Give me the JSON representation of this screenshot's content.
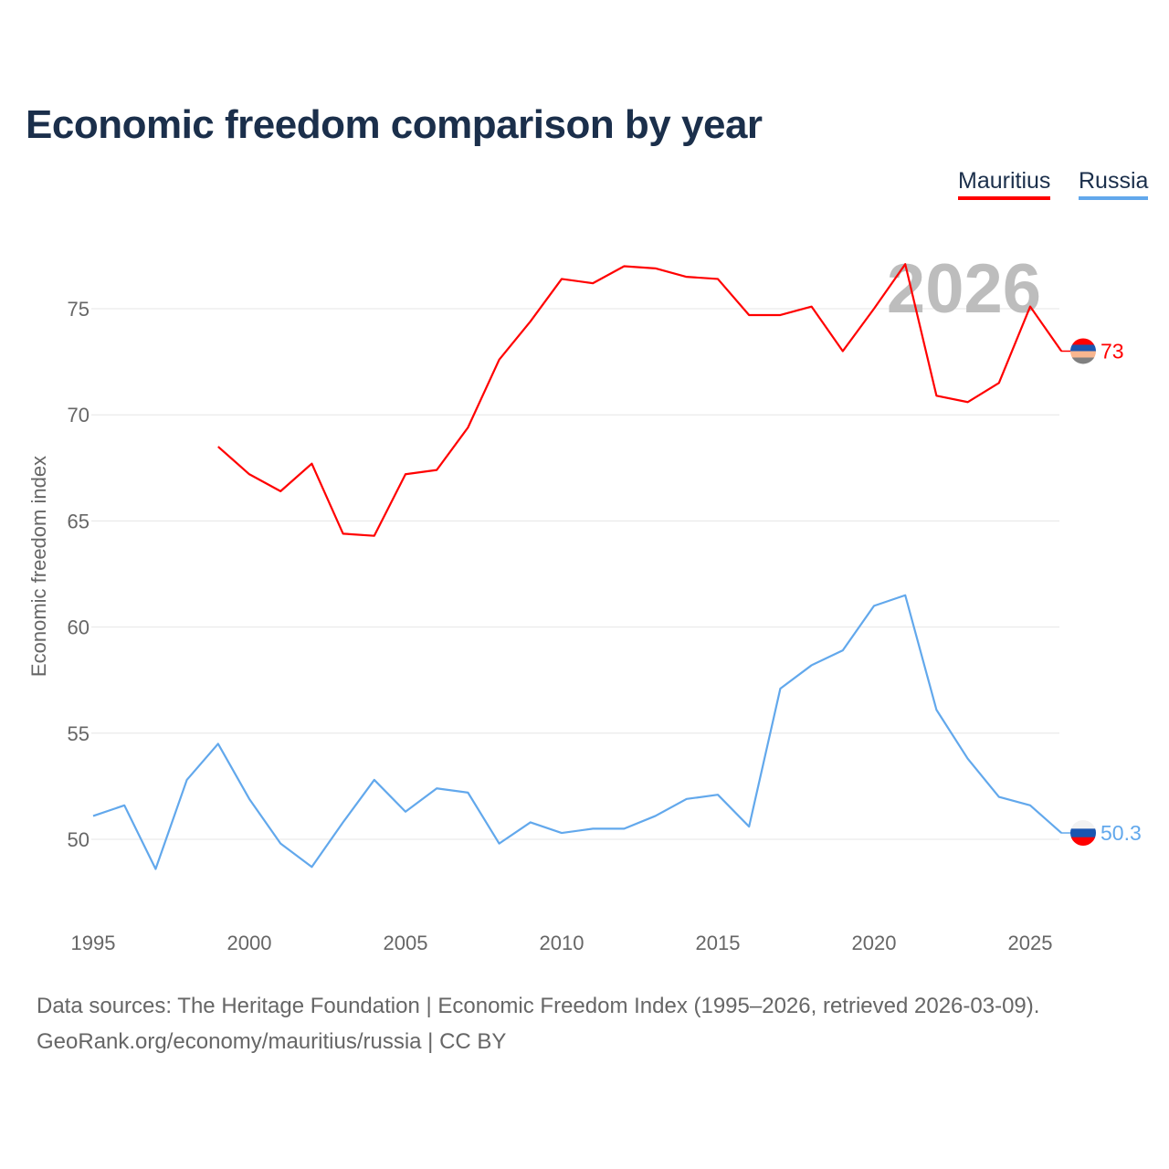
{
  "chart_data": {
    "type": "line",
    "title": "Economic freedom comparison by year",
    "xlabel": "",
    "ylabel": "Economic freedom index",
    "xlim": [
      1995,
      2026
    ],
    "ylim": [
      46.5,
      79
    ],
    "x_ticks": [
      "1995",
      "2000",
      "2005",
      "2010",
      "2015",
      "2020",
      "2025"
    ],
    "y_ticks": [
      "50",
      "55",
      "60",
      "65",
      "70",
      "75"
    ],
    "grid": true,
    "legend_placement": "top-right",
    "watermark_year": "2026",
    "series": [
      {
        "name": "Mauritius",
        "color": "#ff0000",
        "end_label": "73",
        "x": [
          1999,
          2000,
          2001,
          2002,
          2003,
          2004,
          2005,
          2006,
          2007,
          2008,
          2009,
          2010,
          2011,
          2012,
          2013,
          2014,
          2015,
          2016,
          2017,
          2018,
          2019,
          2020,
          2021,
          2022,
          2023,
          2024,
          2025,
          2026
        ],
        "values": [
          68.5,
          67.2,
          66.4,
          67.7,
          64.4,
          64.3,
          67.2,
          67.4,
          69.4,
          72.6,
          74.4,
          76.4,
          76.2,
          77.0,
          76.9,
          76.5,
          76.4,
          74.7,
          74.7,
          75.1,
          73.0,
          75.0,
          77.1,
          70.9,
          70.6,
          71.5,
          75.1,
          73.0
        ]
      },
      {
        "name": "Russia",
        "color": "#62a8ec",
        "end_label": "50.3",
        "x": [
          1995,
          1996,
          1997,
          1998,
          1999,
          2000,
          2001,
          2002,
          2003,
          2004,
          2005,
          2006,
          2007,
          2008,
          2009,
          2010,
          2011,
          2012,
          2013,
          2014,
          2015,
          2016,
          2017,
          2018,
          2019,
          2020,
          2021,
          2022,
          2023,
          2024,
          2025,
          2026
        ],
        "values": [
          51.1,
          51.6,
          48.6,
          52.8,
          54.5,
          51.9,
          49.8,
          48.7,
          50.8,
          52.8,
          51.3,
          52.4,
          52.2,
          49.8,
          50.8,
          50.3,
          50.5,
          50.5,
          51.1,
          51.9,
          52.1,
          50.6,
          57.1,
          58.2,
          58.9,
          61.0,
          61.5,
          56.1,
          53.8,
          52.0,
          51.6,
          50.3
        ]
      }
    ]
  },
  "footer": {
    "sources": "Data sources: The Heritage Foundation | Economic Freedom Index (1995–2026, retrieved 2026-03-09).",
    "credit": "GeoRank.org/economy/mauritius/russia | CC BY"
  }
}
